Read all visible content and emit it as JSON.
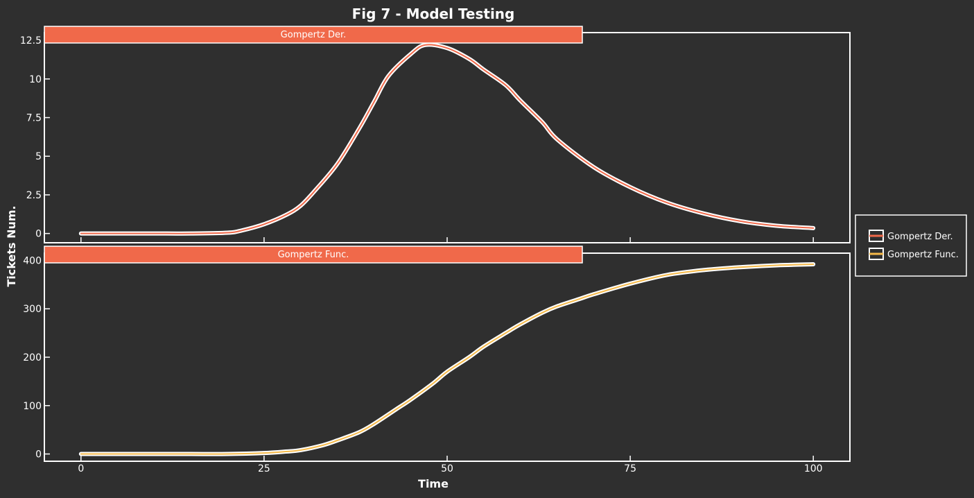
{
  "title": "Fig 7 - Model Testing",
  "colors": {
    "background": "#2f2f2f",
    "axes": "#ffffff",
    "panel_header": "#f0694a",
    "derivative_line": "#f0694a",
    "function_line": "#f5b94a"
  },
  "chart_data": [
    {
      "type": "line",
      "panel_label": "Gompertz Der.",
      "ylabel": "Tickets Num.",
      "xlabel": "Time",
      "xlim": [
        -5,
        105
      ],
      "ylim": [
        -0.6,
        13
      ],
      "x_ticks": [
        0,
        25,
        50,
        75,
        100
      ],
      "x_tick_labels": [
        "0",
        "25",
        "50",
        "75",
        "100"
      ],
      "y_ticks": [
        0,
        2.5,
        5,
        7.5,
        10,
        12.5
      ],
      "y_tick_labels": [
        "0",
        "2.5",
        "5",
        "7.5",
        "10",
        "12.5"
      ],
      "series": [
        {
          "name": "Gompertz Der.",
          "x": [
            0,
            5,
            10,
            15,
            20,
            22,
            25,
            28,
            30,
            32,
            35,
            38,
            40,
            42,
            45,
            47,
            50,
            53,
            55,
            58,
            60,
            63,
            65,
            70,
            75,
            80,
            85,
            90,
            95,
            100
          ],
          "y": [
            0,
            0,
            0,
            0,
            0.05,
            0.2,
            0.6,
            1.2,
            1.8,
            2.8,
            4.5,
            6.8,
            8.5,
            10.2,
            11.6,
            12.2,
            12.0,
            11.3,
            10.6,
            9.6,
            8.6,
            7.2,
            6.1,
            4.3,
            3.0,
            2.0,
            1.3,
            0.8,
            0.5,
            0.35
          ]
        }
      ]
    },
    {
      "type": "line",
      "panel_label": "Gompertz Func.",
      "ylabel": "Tickets Num.",
      "xlabel": "Time",
      "xlim": [
        -5,
        105
      ],
      "ylim": [
        -15,
        415
      ],
      "x_ticks": [
        0,
        25,
        50,
        75,
        100
      ],
      "x_tick_labels": [
        "0",
        "25",
        "50",
        "75",
        "100"
      ],
      "y_ticks": [
        0,
        100,
        200,
        300,
        400
      ],
      "y_tick_labels": [
        "0",
        "100",
        "200",
        "300",
        "400"
      ],
      "series": [
        {
          "name": "Gompertz Func.",
          "x": [
            0,
            5,
            10,
            15,
            20,
            25,
            28,
            30,
            33,
            35,
            38,
            40,
            43,
            45,
            48,
            50,
            53,
            55,
            58,
            60,
            63,
            65,
            68,
            70,
            75,
            80,
            85,
            90,
            95,
            100
          ],
          "y": [
            0,
            0,
            0,
            0,
            0,
            2,
            5,
            8,
            18,
            28,
            45,
            62,
            92,
            112,
            145,
            170,
            200,
            222,
            250,
            268,
            292,
            305,
            320,
            330,
            352,
            370,
            380,
            386,
            390,
            392
          ]
        }
      ]
    }
  ],
  "legend": {
    "position": "right",
    "entries": [
      "Gompertz Der.",
      "Gompertz Func."
    ]
  }
}
